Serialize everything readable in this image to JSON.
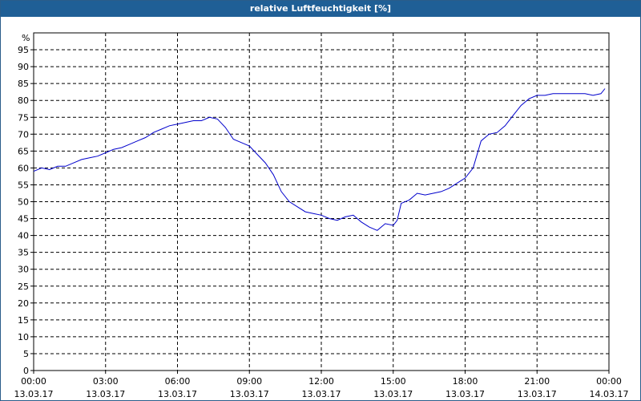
{
  "title": "relative Luftfeuchtigkeit [%]",
  "chart_data": {
    "type": "line",
    "title": "relative Luftfeuchtigkeit [%]",
    "ylabel": "%",
    "ylim": [
      0,
      100
    ],
    "yticks": [
      0,
      5,
      10,
      15,
      20,
      25,
      30,
      35,
      40,
      45,
      50,
      55,
      60,
      65,
      70,
      75,
      80,
      85,
      90,
      95
    ],
    "xlim": [
      "13.03.17 00:00",
      "14.03.17 00:00"
    ],
    "xticks": [
      {
        "time": "00:00",
        "date": "13.03.17"
      },
      {
        "time": "03:00",
        "date": "13.03.17"
      },
      {
        "time": "06:00",
        "date": "13.03.17"
      },
      {
        "time": "09:00",
        "date": "13.03.17"
      },
      {
        "time": "12:00",
        "date": "13.03.17"
      },
      {
        "time": "15:00",
        "date": "13.03.17"
      },
      {
        "time": "18:00",
        "date": "13.03.17"
      },
      {
        "time": "21:00",
        "date": "13.03.17"
      },
      {
        "time": "00:00",
        "date": "14.03.17"
      }
    ],
    "grid": true,
    "line_color": "#0000cc",
    "series": [
      {
        "x": [
          "00:00",
          "00:20",
          "00:40",
          "01:00",
          "01:20",
          "01:40",
          "02:00",
          "02:20",
          "02:40",
          "03:00",
          "03:20",
          "03:40",
          "04:00",
          "04:20",
          "04:40",
          "05:00",
          "05:20",
          "05:40",
          "06:00",
          "06:20",
          "06:40",
          "07:00",
          "07:20",
          "07:40",
          "08:00",
          "08:20",
          "08:40",
          "09:00",
          "09:20",
          "09:40",
          "10:00",
          "10:20",
          "10:40",
          "11:00",
          "11:20",
          "11:40",
          "12:00",
          "12:20",
          "12:40",
          "13:00",
          "13:20",
          "13:40",
          "14:00",
          "14:20",
          "14:40",
          "15:00",
          "15:10",
          "15:20",
          "15:40",
          "16:00",
          "16:20",
          "16:40",
          "17:00",
          "17:20",
          "17:40",
          "18:00",
          "18:20",
          "18:40",
          "19:00",
          "19:20",
          "19:40",
          "20:00",
          "20:20",
          "20:40",
          "21:00",
          "21:20",
          "21:40",
          "22:00",
          "22:20",
          "22:40",
          "23:00",
          "23:20",
          "23:40",
          "23:50"
        ],
        "y": [
          59,
          60,
          59.5,
          60.5,
          60.5,
          61.5,
          62.5,
          63,
          63.5,
          64.5,
          65.5,
          66,
          67,
          68,
          69,
          70.5,
          71.5,
          72.5,
          73,
          73.5,
          74,
          74,
          75,
          74.5,
          72,
          68.5,
          67.5,
          66.5,
          64,
          61.5,
          58,
          53,
          50,
          48.5,
          47,
          46.5,
          46,
          45,
          44.5,
          45.5,
          46,
          44,
          42.5,
          41.5,
          43.5,
          43,
          44.5,
          49.5,
          50.5,
          52.5,
          52,
          52.5,
          53,
          54,
          55.5,
          57,
          60,
          68,
          70,
          70.5,
          72.5,
          75.5,
          78.5,
          80.5,
          81.5,
          81.5,
          82,
          82,
          82,
          82,
          82,
          81.5,
          82,
          83.5
        ]
      }
    ]
  }
}
